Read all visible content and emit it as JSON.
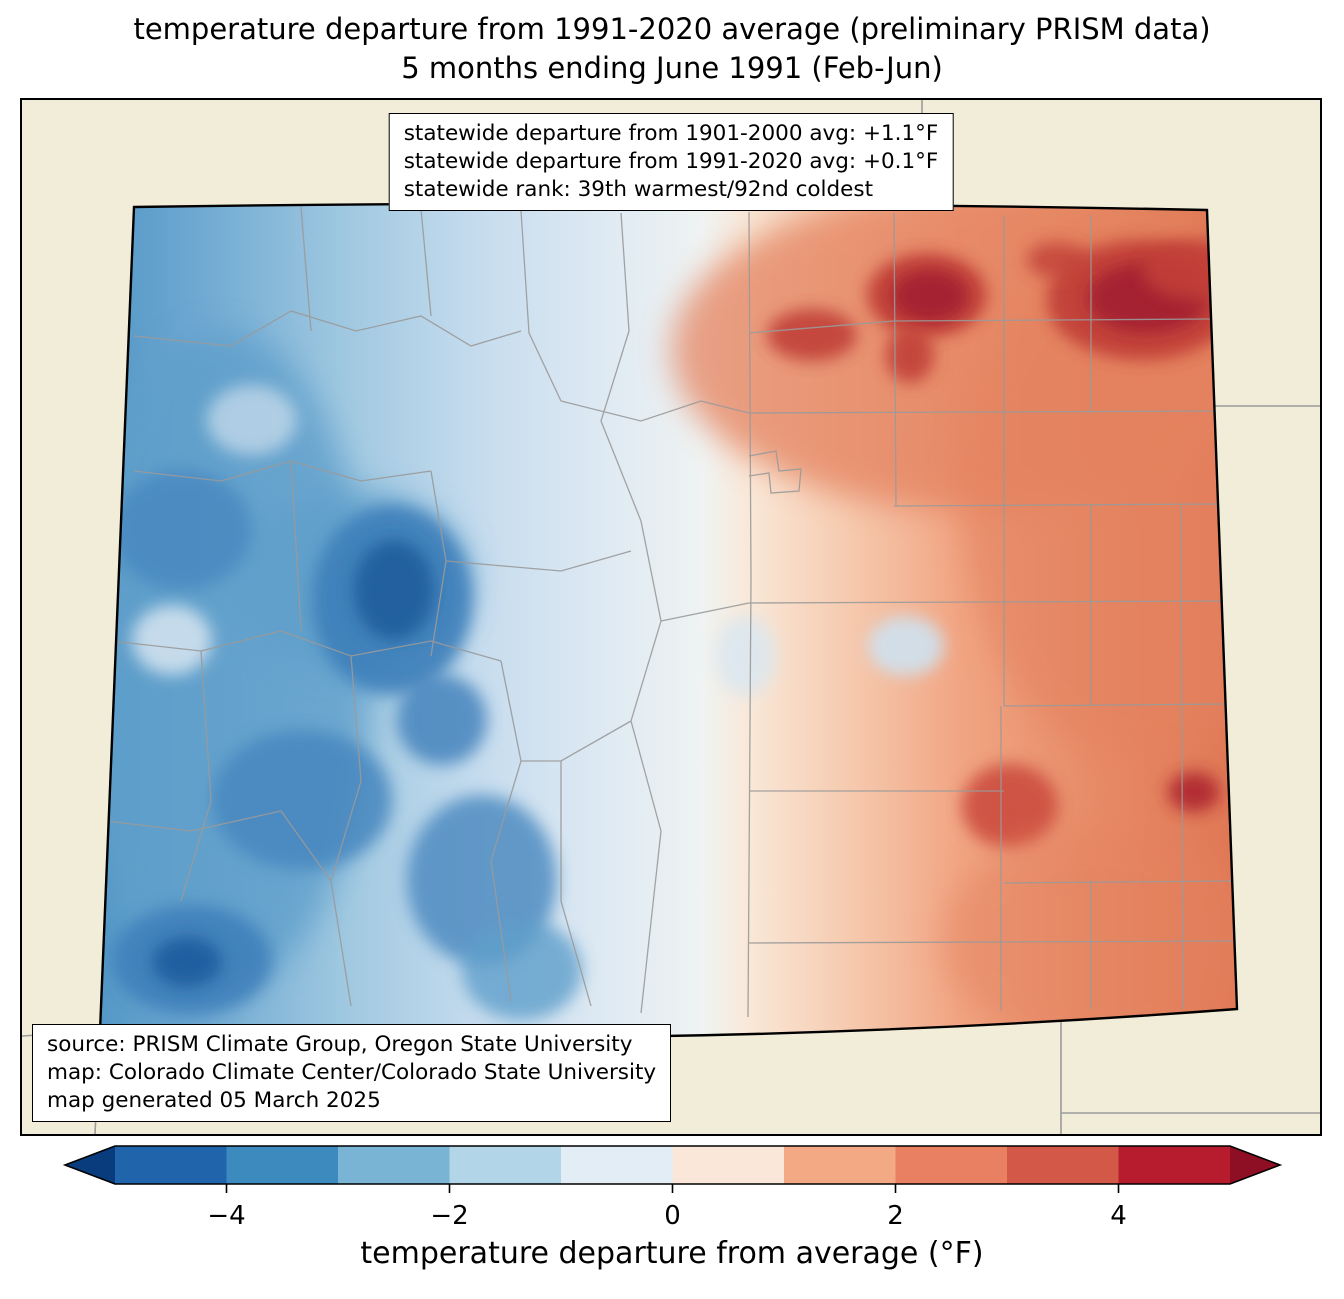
{
  "title": {
    "line1": "temperature departure from 1991-2020 average (preliminary PRISM data)",
    "line2": "5 months ending June 1991 (Feb-Jun)"
  },
  "stats_box": {
    "line1": "statewide departure from 1901-2000 avg: +1.1°F",
    "line2": "statewide departure from 1991-2020 avg: +0.1°F",
    "line3": "statewide rank: 39th warmest/92nd coldest"
  },
  "source_box": {
    "line1": "source: PRISM Climate Group, Oregon State University",
    "line2": "map: Colorado Climate Center/Colorado State University",
    "line3": "map generated 05 March 2025"
  },
  "colorbar": {
    "label": "temperature departure from average (°F)",
    "ticks": [
      "−4",
      "−2",
      "0",
      "2",
      "4"
    ],
    "tick_values": [
      -4,
      -2,
      0,
      2,
      4
    ],
    "range": [
      -5,
      5
    ],
    "arrow_left_color": "#083c7c",
    "arrow_right_color": "#8e0e23",
    "segments": [
      {
        "from": -5,
        "to": -4,
        "color": "#2065ab"
      },
      {
        "from": -4,
        "to": -3,
        "color": "#3c8abe"
      },
      {
        "from": -3,
        "to": -2,
        "color": "#7ab4d5"
      },
      {
        "from": -2,
        "to": -1,
        "color": "#b3d5e8"
      },
      {
        "from": -1,
        "to": 0,
        "color": "#e2edf5"
      },
      {
        "from": 0,
        "to": 1,
        "color": "#fbe7d9"
      },
      {
        "from": 1,
        "to": 2,
        "color": "#f4a985"
      },
      {
        "from": 2,
        "to": 3,
        "color": "#e88061"
      },
      {
        "from": 3,
        "to": 4,
        "color": "#d35847"
      },
      {
        "from": 4,
        "to": 5,
        "color": "#b71c2e"
      }
    ]
  }
}
